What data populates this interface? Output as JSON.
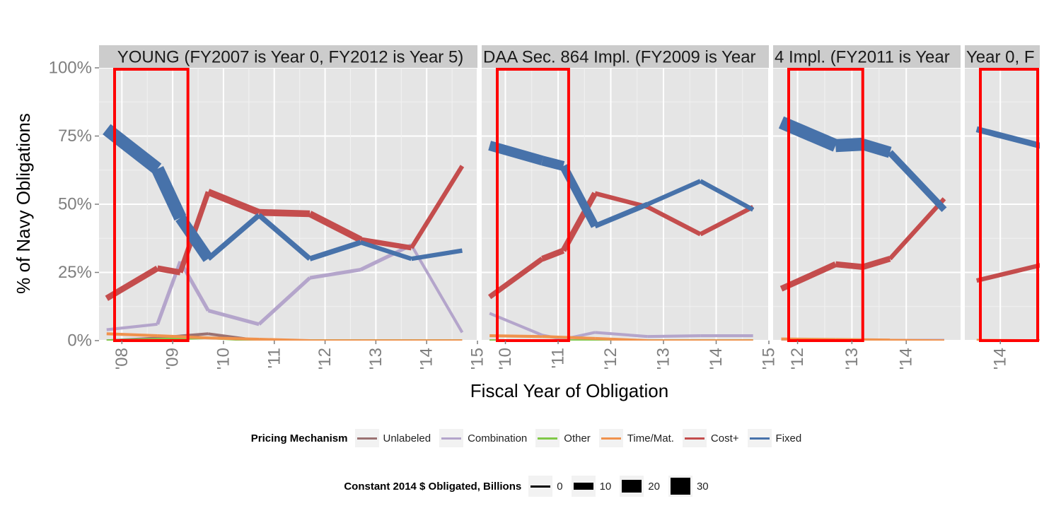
{
  "chart_data": {
    "type": "line",
    "ylabel": "% of  Navy  Obligations",
    "xlabel": "Fiscal Year of Obligation",
    "ylim": [
      0,
      1
    ],
    "yticks": [
      "0%",
      "25%",
      "50%",
      "75%",
      "100%"
    ],
    "grid": true,
    "panels": [
      {
        "strip": "YOUNG (FY2007 is Year 0, FY2012 is Year 5)",
        "xlim": [
          2007.55,
          2015.0
        ],
        "xticks": [
          "'08",
          "'09",
          "'10",
          "'11",
          "'12",
          "'13",
          "'14",
          "'15"
        ],
        "highlight_years": [
          2007.55,
          2009.3
        ],
        "series": [
          {
            "name": "Unlabeled",
            "x": [
              2007.7,
              2008.7,
              2009.7,
              2010.7,
              2011.7,
              2012.7,
              2013.7,
              2014.7
            ],
            "y": [
              0.0,
              0.01,
              0.025,
              0.0,
              0.0,
              0.0,
              0.0,
              0.0
            ],
            "size": [
              0.5,
              0.5,
              1,
              0.5,
              0.5,
              0.5,
              0.5,
              0.5
            ]
          },
          {
            "name": "Combination",
            "x": [
              2007.7,
              2008.7,
              2009.15,
              2009.7,
              2010.7,
              2011.7,
              2012.7,
              2013.7,
              2014.7
            ],
            "y": [
              0.04,
              0.06,
              0.29,
              0.11,
              0.06,
              0.23,
              0.26,
              0.35,
              0.03
            ],
            "size": [
              1,
              1,
              2,
              2,
              1,
              2,
              2,
              1,
              1
            ]
          },
          {
            "name": "Other",
            "x": [
              2007.7,
              2008.7,
              2009.7,
              2010.7,
              2011.7,
              2012.7,
              2013.7,
              2014.7
            ],
            "y": [
              0.0,
              0.005,
              0.01,
              0.0,
              0.0,
              0.0,
              0.0,
              0.0
            ],
            "size": [
              0.5,
              0.5,
              0.5,
              0.5,
              0.5,
              0.5,
              0.5,
              0.5
            ]
          },
          {
            "name": "Time/Mat.",
            "x": [
              2007.7,
              2008.7,
              2009.7,
              2010.7,
              2011.7,
              2012.7,
              2013.7,
              2014.7
            ],
            "y": [
              0.025,
              0.018,
              0.01,
              0.005,
              0.0,
              0.0,
              0.0,
              0.0
            ],
            "size": [
              1,
              1,
              1,
              1,
              0.5,
              0.5,
              0.5,
              0.5
            ]
          },
          {
            "name": "Cost+",
            "x": [
              2007.7,
              2008.7,
              2009.15,
              2009.7,
              2010.7,
              2011.7,
              2012.7,
              2013.7,
              2014.7
            ],
            "y": [
              0.155,
              0.265,
              0.25,
              0.545,
              0.47,
              0.465,
              0.37,
              0.34,
              0.64
            ],
            "size": [
              2,
              5,
              4,
              4,
              6,
              6,
              4,
              3,
              2
            ]
          },
          {
            "name": "Fixed",
            "x": [
              2007.7,
              2008.7,
              2009.15,
              2009.7,
              2010.7,
              2011.7,
              2012.7,
              2013.7,
              2014.7
            ],
            "y": [
              0.775,
              0.63,
              0.45,
              0.3,
              0.46,
              0.3,
              0.36,
              0.3,
              0.33
            ],
            "size": [
              5,
              14,
              12,
              4,
              4,
              4,
              3,
              3,
              2
            ]
          }
        ]
      },
      {
        "strip": "DAA Sec. 864 Impl. (FY2009 is Year",
        "xlim": [
          2009.55,
          2015.0
        ],
        "xticks": [
          "'10",
          "'11",
          "'12",
          "'13",
          "'14",
          "'15"
        ],
        "highlight_years": [
          2009.7,
          2011.2
        ],
        "series": [
          {
            "name": "Unlabeled",
            "x": [
              2009.7,
              2010.7,
              2011.7,
              2012.7,
              2013.7,
              2014.7
            ],
            "y": [
              0.0,
              0.0,
              0.0,
              0.0,
              0.0,
              0.0
            ],
            "size": [
              0.5,
              0.5,
              0.5,
              0.5,
              0.5,
              0.5
            ]
          },
          {
            "name": "Combination",
            "x": [
              2009.7,
              2010.7,
              2011.1,
              2011.7,
              2012.7,
              2013.7,
              2014.7
            ],
            "y": [
              0.1,
              0.02,
              0.005,
              0.03,
              0.015,
              0.018,
              0.018
            ],
            "size": [
              1,
              1,
              1,
              1,
              1,
              1,
              1
            ]
          },
          {
            "name": "Other",
            "x": [
              2009.7,
              2010.7,
              2011.7,
              2012.7,
              2013.7,
              2014.7
            ],
            "y": [
              0.0,
              0.0,
              0.0,
              0.0,
              0.0,
              0.0
            ],
            "size": [
              0.5,
              0.5,
              0.5,
              0.5,
              0.5,
              0.5
            ]
          },
          {
            "name": "Time/Mat.",
            "x": [
              2009.7,
              2010.7,
              2011.7,
              2012.7,
              2013.7,
              2014.7
            ],
            "y": [
              0.018,
              0.015,
              0.008,
              0.0,
              0.0,
              0.0
            ],
            "size": [
              1,
              1,
              1,
              0.5,
              0.5,
              0.5
            ]
          },
          {
            "name": "Cost+",
            "x": [
              2009.7,
              2010.7,
              2011.1,
              2011.7,
              2012.7,
              2013.7,
              2014.7
            ],
            "y": [
              0.16,
              0.3,
              0.33,
              0.54,
              0.49,
              0.39,
              0.49
            ],
            "size": [
              2,
              4,
              5,
              3,
              3,
              3,
              2
            ]
          },
          {
            "name": "Fixed",
            "x": [
              2009.7,
              2010.7,
              2011.1,
              2011.7,
              2012.7,
              2013.7,
              2014.7
            ],
            "y": [
              0.715,
              0.66,
              0.64,
              0.42,
              0.5,
              0.585,
              0.48
            ],
            "size": [
              6,
              10,
              8,
              4,
              3,
              3,
              3
            ]
          }
        ]
      },
      {
        "strip": "4 Impl. (FY2011 is Year",
        "xlim": [
          2011.55,
          2015.0
        ],
        "xticks": [
          "'12",
          "'13",
          "'14"
        ],
        "highlight_years": [
          2011.7,
          2013.2
        ],
        "series": [
          {
            "name": "Unlabeled",
            "x": [
              2011.7,
              2012.7,
              2013.7,
              2014.7
            ],
            "y": [
              0.0,
              0.0,
              0.0,
              0.0
            ],
            "size": [
              0.5,
              0.5,
              0.5,
              0.5
            ]
          },
          {
            "name": "Combination",
            "x": [
              2011.7,
              2012.7,
              2013.7,
              2014.7
            ],
            "y": [
              0.002,
              0.002,
              0.002,
              0.002
            ],
            "size": [
              0.5,
              0.5,
              0.5,
              0.5
            ]
          },
          {
            "name": "Time/Mat.",
            "x": [
              2011.7,
              2012.7,
              2013.7,
              2014.7
            ],
            "y": [
              0.006,
              0.004,
              0.002,
              0.0
            ],
            "size": [
              1,
              1,
              0.5,
              0.5
            ]
          },
          {
            "name": "Cost+",
            "x": [
              2011.7,
              2012.7,
              2013.2,
              2013.7,
              2014.7
            ],
            "y": [
              0.19,
              0.28,
              0.27,
              0.3,
              0.52
            ],
            "size": [
              3,
              5,
              5,
              3,
              2
            ]
          },
          {
            "name": "Fixed",
            "x": [
              2011.7,
              2012.7,
              2013.2,
              2013.7,
              2014.7
            ],
            "y": [
              0.8,
              0.715,
              0.72,
              0.69,
              0.48
            ],
            "size": [
              12,
              14,
              12,
              6,
              4
            ]
          }
        ]
      },
      {
        "strip": "Year 0, F",
        "xlim": [
          2013.55,
          2014.5
        ],
        "xticks": [
          "'14"
        ],
        "highlight_years": [
          2013.55,
          2014.5
        ],
        "series": [
          {
            "name": "Time/Mat.",
            "x": [
              2013.7,
              2014.7
            ],
            "y": [
              0.002,
              0.0
            ],
            "size": [
              0.5,
              0.5
            ]
          },
          {
            "name": "Cost+",
            "x": [
              2013.7,
              2014.7
            ],
            "y": [
              0.22,
              0.29
            ],
            "size": [
              3,
              3
            ]
          },
          {
            "name": "Fixed",
            "x": [
              2013.7,
              2014.7
            ],
            "y": [
              0.775,
              0.7
            ],
            "size": [
              5,
              5
            ]
          }
        ]
      }
    ],
    "legend": {
      "position": "bottom",
      "color_title": "Pricing Mechanism",
      "items": [
        {
          "label": "Unlabeled",
          "color": "#9b7272"
        },
        {
          "label": "Combination",
          "color": "#b4a5cb"
        },
        {
          "label": "Other",
          "color": "#80c848"
        },
        {
          "label": "Time/Mat.",
          "color": "#f0924d"
        },
        {
          "label": "Cost+",
          "color": "#c44d4d"
        },
        {
          "label": "Fixed",
          "color": "#4772aa"
        }
      ],
      "size_title": "Constant 2014 $ Obligated, Billions",
      "size_items": [
        {
          "label": "0",
          "value": 0
        },
        {
          "label": "10",
          "value": 10
        },
        {
          "label": "20",
          "value": 20
        },
        {
          "label": "30",
          "value": 30
        }
      ]
    },
    "colors": {
      "Unlabeled": "#9b7272",
      "Combination": "#b4a5cb",
      "Other": "#80c848",
      "Time/Mat.": "#f0924d",
      "Cost+": "#c44d4d",
      "Fixed": "#4772aa",
      "highlight": "#ff0000",
      "panel_bg": "#e5e5e5",
      "strip_bg": "#cccccc"
    }
  }
}
